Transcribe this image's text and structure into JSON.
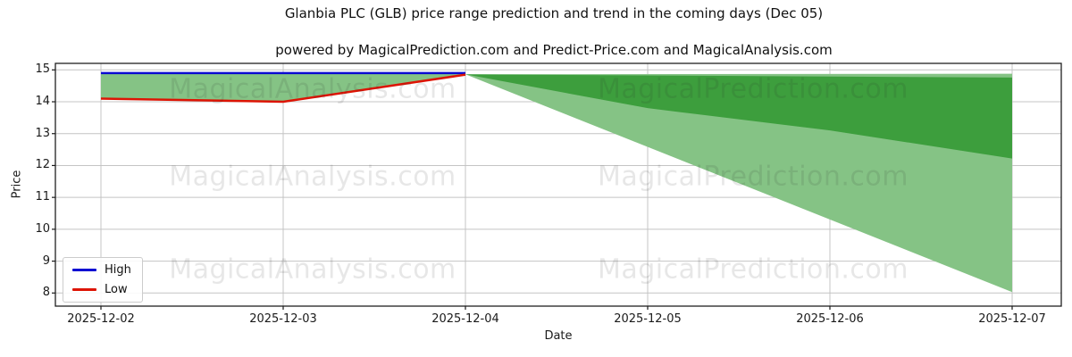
{
  "figure": {
    "title": "Glanbia PLC (GLB) price range prediction and trend in the coming days (Dec 05)",
    "subtitle": "powered by MagicalPrediction.com and Predict-Price.com and MagicalAnalysis.com"
  },
  "watermarks": {
    "texts": [
      "MagicalAnalysis.com",
      "MagicalPrediction.com"
    ],
    "color": "rgba(40,40,40,0.11)"
  },
  "chart_data": {
    "type": "line",
    "title": "Glanbia PLC (GLB) price range prediction and trend in the coming days (Dec 05)",
    "subtitle": "powered by MagicalPrediction.com and Predict-Price.com and MagicalAnalysis.com",
    "xlabel": "Date",
    "ylabel": "Price",
    "x": [
      "2025-12-02",
      "2025-12-03",
      "2025-12-04",
      "2025-12-05",
      "2025-12-06",
      "2025-12-07"
    ],
    "yticks": [
      8,
      9,
      10,
      11,
      12,
      13,
      14,
      15
    ],
    "ylim": [
      7.6,
      15.2
    ],
    "grid": true,
    "legend_position": "lower left",
    "series": [
      {
        "name": "High",
        "color": "#0b0bd2",
        "x": [
          "2025-12-02",
          "2025-12-03",
          "2025-12-04"
        ],
        "values": [
          14.9,
          14.9,
          14.9
        ]
      },
      {
        "name": "Low",
        "color": "#dd1404",
        "x": [
          "2025-12-02",
          "2025-12-03",
          "2025-12-04"
        ],
        "values": [
          14.1,
          14.0,
          14.85
        ]
      }
    ],
    "bands": [
      {
        "name": "forecast-range-wide",
        "color": "#85c385",
        "upper": {
          "x": [
            "2025-12-04",
            "2025-12-07"
          ],
          "values": [
            14.86,
            14.88
          ]
        },
        "lower": {
          "x": [
            "2025-12-04",
            "2025-12-07"
          ],
          "values": [
            14.86,
            8.03
          ]
        }
      },
      {
        "name": "forecast-trend-narrow",
        "color": "#3d9e3d",
        "upper": {
          "x": [
            "2025-12-04",
            "2025-12-07"
          ],
          "values": [
            14.86,
            14.76
          ]
        },
        "lower": {
          "x": [
            "2025-12-04",
            "2025-12-05",
            "2025-12-06",
            "2025-12-07"
          ],
          "values": [
            14.86,
            13.8,
            13.1,
            12.22
          ]
        }
      },
      {
        "name": "actual-high-low-range",
        "color": "#85c385",
        "upper": {
          "x": [
            "2025-12-02",
            "2025-12-03",
            "2025-12-04"
          ],
          "values": [
            14.9,
            14.9,
            14.9
          ]
        },
        "lower": {
          "x": [
            "2025-12-02",
            "2025-12-03",
            "2025-12-04"
          ],
          "values": [
            14.1,
            14.0,
            14.85
          ]
        }
      }
    ]
  }
}
